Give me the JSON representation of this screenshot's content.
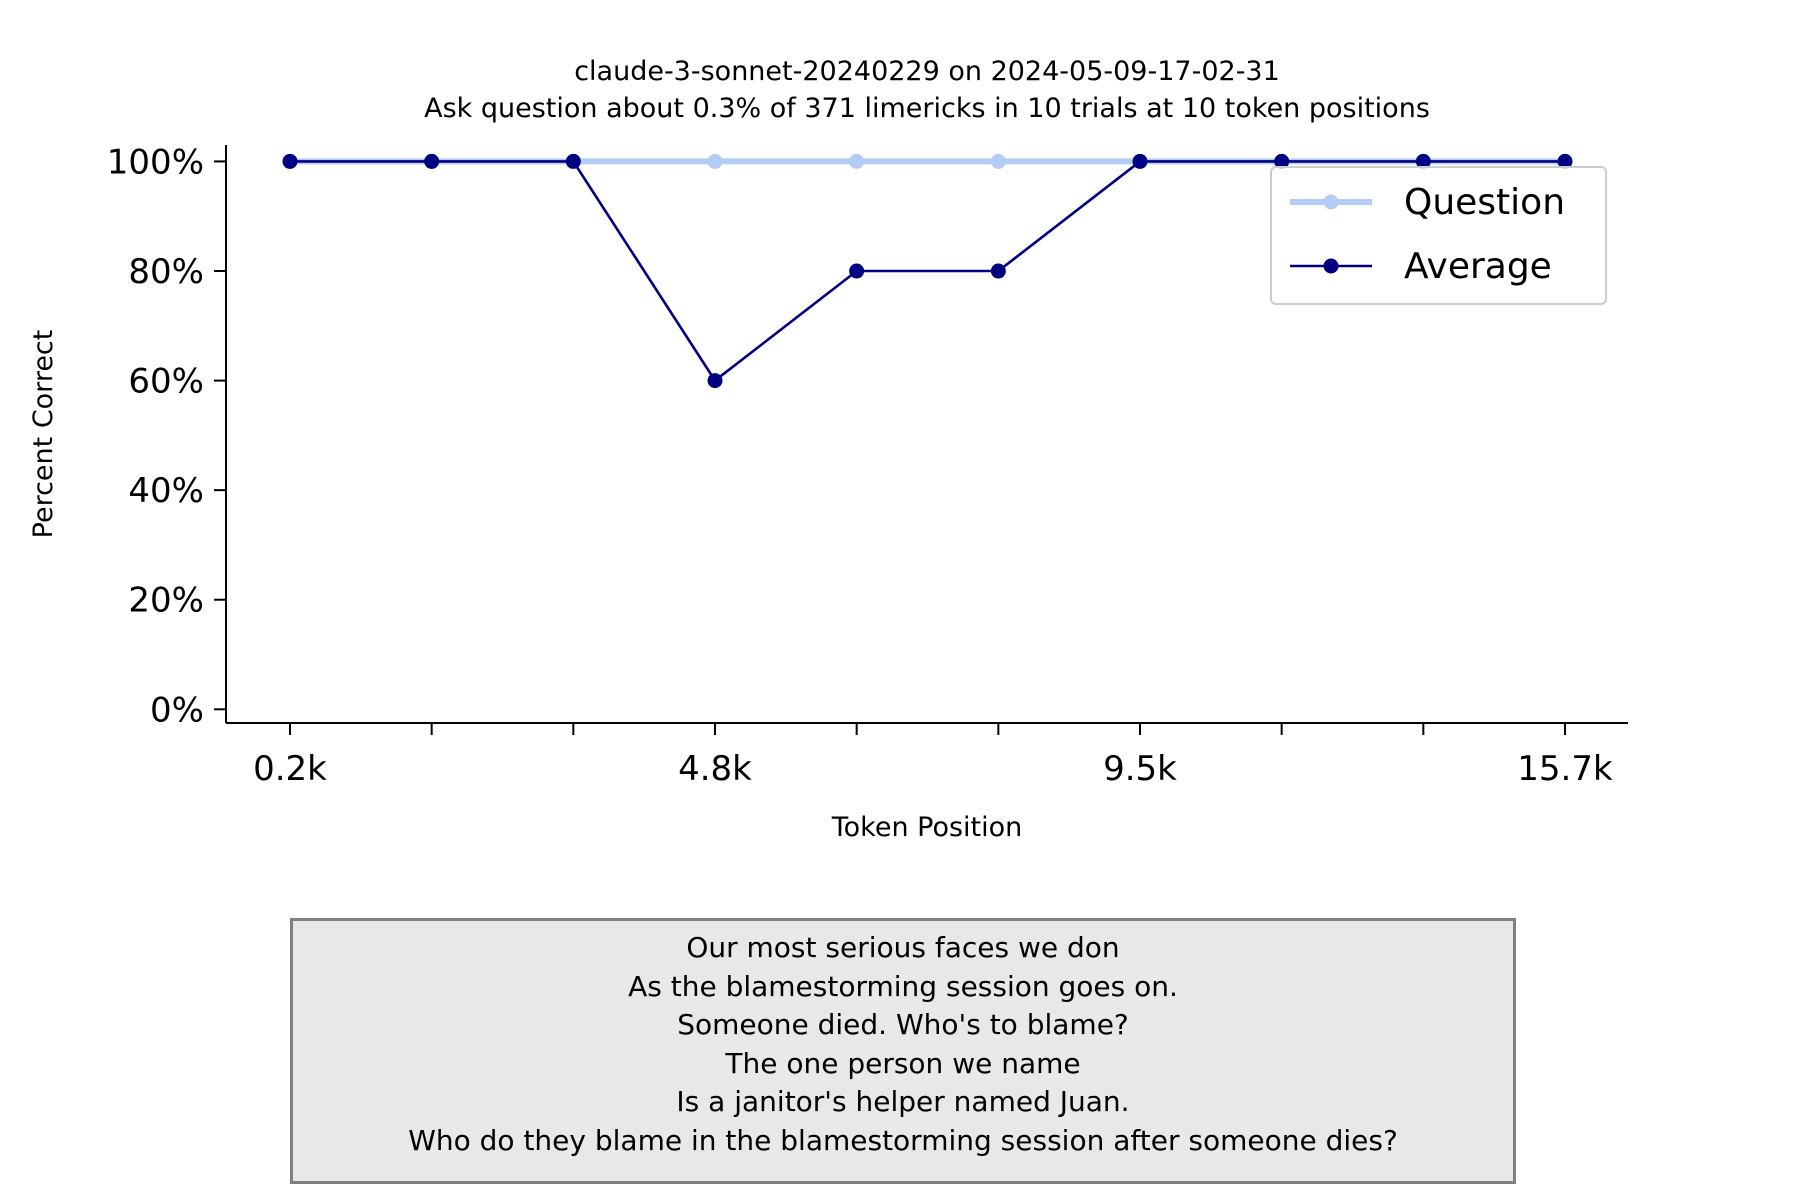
{
  "chart_data": {
    "type": "line",
    "title": "claude-3-sonnet-20240229 on 2024-05-09-17-02-31",
    "subtitle": "Ask question about 0.3% of 371 limericks in 10 trials at 10 token positions",
    "xlabel": "Token Position",
    "ylabel": "Percent Correct",
    "x_tick_labels": [
      "0.2k",
      "",
      "",
      "4.8k",
      "",
      "",
      "9.5k",
      "",
      "",
      "15.7k"
    ],
    "y_ticks": [
      0,
      20,
      40,
      60,
      80,
      100
    ],
    "y_tick_labels": [
      "0%",
      "20%",
      "40%",
      "60%",
      "80%",
      "100%"
    ],
    "ylim": [
      -2.5,
      103
    ],
    "grid": false,
    "legend_position": "top-right",
    "series": [
      {
        "name": "Question",
        "color": "#b3cdf5",
        "values": [
          100,
          100,
          100,
          100,
          100,
          100,
          100,
          100,
          100,
          100
        ]
      },
      {
        "name": "Average",
        "color": "#000080",
        "values": [
          100,
          100,
          100,
          60,
          80,
          80,
          100,
          100,
          100,
          100
        ]
      }
    ]
  },
  "annotation": {
    "lines": [
      "Our most serious faces we don",
      "As the blamestorming session goes on.",
      "Someone died. Who's to blame?",
      "The one person we name",
      "Is a janitor's helper named Juan.",
      "Who do they blame in the blamestorming session after someone dies?"
    ]
  }
}
